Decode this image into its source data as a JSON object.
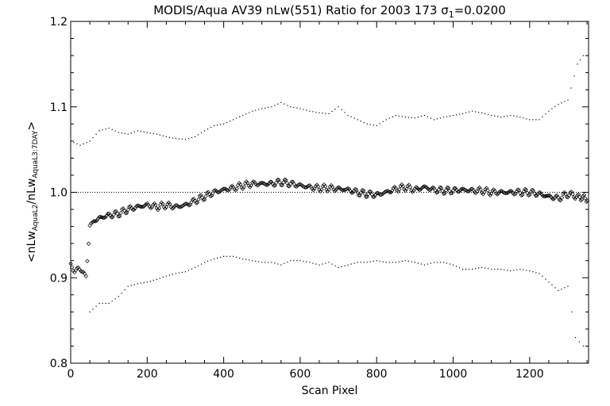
{
  "chart_data": {
    "type": "scatter",
    "title_main": "MODIS/Aqua AV39 nLw(551) Ratio for 2003 173 ",
    "title_sigma": "σ",
    "title_sigma_sub": "1",
    "title_sigma_value": "=0.0200",
    "xlabel": "Scan Pixel",
    "ylabel_parts": [
      "<nLw",
      "AquaL2",
      "/nLw",
      "AquaL3:7DAY",
      ">"
    ],
    "xlim": [
      0,
      1354
    ],
    "ylim": [
      0.8,
      1.2
    ],
    "x_ticks": [
      0,
      200,
      400,
      600,
      800,
      1000,
      1200
    ],
    "x_tick_labels": [
      "0",
      "200",
      "400",
      "600",
      "800",
      "1000",
      "1200"
    ],
    "y_ticks": [
      0.8,
      0.9,
      1.0,
      1.1,
      1.2
    ],
    "y_tick_labels": [
      "0.8",
      "0.9",
      "1.0",
      "1.1",
      "1.2"
    ],
    "reference_line": 1.0,
    "grid": false,
    "series": [
      {
        "style": "diamond-markers",
        "points": [
          [
            0,
            0.915
          ],
          [
            10,
            0.91
          ],
          [
            20,
            0.91
          ],
          [
            30,
            0.905
          ],
          [
            40,
            0.905
          ],
          [
            50,
            0.96
          ],
          [
            60,
            0.965
          ],
          [
            75,
            0.97
          ],
          [
            100,
            0.973
          ],
          [
            125,
            0.975
          ],
          [
            150,
            0.98
          ],
          [
            175,
            0.983
          ],
          [
            200,
            0.985
          ],
          [
            225,
            0.983
          ],
          [
            250,
            0.985
          ],
          [
            275,
            0.983
          ],
          [
            300,
            0.985
          ],
          [
            325,
            0.99
          ],
          [
            350,
            0.995
          ],
          [
            375,
            1.0
          ],
          [
            400,
            1.003
          ],
          [
            425,
            1.005
          ],
          [
            450,
            1.008
          ],
          [
            475,
            1.01
          ],
          [
            500,
            1.01
          ],
          [
            525,
            1.01
          ],
          [
            550,
            1.012
          ],
          [
            575,
            1.01
          ],
          [
            600,
            1.008
          ],
          [
            625,
            1.006
          ],
          [
            650,
            1.005
          ],
          [
            675,
            1.005
          ],
          [
            700,
            1.004
          ],
          [
            725,
            1.003
          ],
          [
            750,
            1.0
          ],
          [
            775,
            0.998
          ],
          [
            800,
            0.997
          ],
          [
            825,
            1.0
          ],
          [
            850,
            1.004
          ],
          [
            875,
            1.006
          ],
          [
            900,
            1.003
          ],
          [
            925,
            1.006
          ],
          [
            950,
            1.003
          ],
          [
            975,
            1.002
          ],
          [
            1000,
            1.002
          ],
          [
            1025,
            1.003
          ],
          [
            1050,
            1.002
          ],
          [
            1075,
            1.002
          ],
          [
            1100,
            1.0
          ],
          [
            1125,
            1.0
          ],
          [
            1150,
            1.0
          ],
          [
            1175,
            1.0
          ],
          [
            1200,
            1.0
          ],
          [
            1225,
            0.998
          ],
          [
            1250,
            0.995
          ],
          [
            1275,
            0.993
          ],
          [
            1300,
            0.998
          ],
          [
            1325,
            0.995
          ],
          [
            1354,
            0.992
          ]
        ]
      },
      {
        "style": "dots-upper",
        "points": [
          [
            0,
            1.06
          ],
          [
            25,
            1.055
          ],
          [
            50,
            1.06
          ],
          [
            75,
            1.072
          ],
          [
            100,
            1.075
          ],
          [
            125,
            1.07
          ],
          [
            150,
            1.068
          ],
          [
            175,
            1.072
          ],
          [
            200,
            1.07
          ],
          [
            225,
            1.068
          ],
          [
            250,
            1.065
          ],
          [
            275,
            1.063
          ],
          [
            300,
            1.062
          ],
          [
            325,
            1.065
          ],
          [
            350,
            1.072
          ],
          [
            375,
            1.078
          ],
          [
            400,
            1.08
          ],
          [
            425,
            1.085
          ],
          [
            450,
            1.09
          ],
          [
            475,
            1.095
          ],
          [
            500,
            1.098
          ],
          [
            525,
            1.1
          ],
          [
            550,
            1.105
          ],
          [
            575,
            1.1
          ],
          [
            600,
            1.098
          ],
          [
            625,
            1.095
          ],
          [
            650,
            1.093
          ],
          [
            675,
            1.092
          ],
          [
            700,
            1.1
          ],
          [
            725,
            1.09
          ],
          [
            750,
            1.085
          ],
          [
            775,
            1.08
          ],
          [
            800,
            1.078
          ],
          [
            825,
            1.085
          ],
          [
            850,
            1.09
          ],
          [
            875,
            1.088
          ],
          [
            900,
            1.087
          ],
          [
            925,
            1.09
          ],
          [
            950,
            1.085
          ],
          [
            975,
            1.088
          ],
          [
            1000,
            1.09
          ],
          [
            1025,
            1.092
          ],
          [
            1050,
            1.095
          ],
          [
            1075,
            1.093
          ],
          [
            1100,
            1.09
          ],
          [
            1125,
            1.088
          ],
          [
            1150,
            1.09
          ],
          [
            1175,
            1.088
          ],
          [
            1200,
            1.085
          ],
          [
            1225,
            1.085
          ],
          [
            1250,
            1.095
          ],
          [
            1275,
            1.103
          ],
          [
            1300,
            1.108
          ],
          [
            1325,
            1.15
          ],
          [
            1340,
            1.16
          ]
        ]
      },
      {
        "style": "dots-lower",
        "points": [
          [
            50,
            0.86
          ],
          [
            75,
            0.87
          ],
          [
            100,
            0.87
          ],
          [
            125,
            0.878
          ],
          [
            150,
            0.89
          ],
          [
            175,
            0.893
          ],
          [
            200,
            0.895
          ],
          [
            225,
            0.898
          ],
          [
            250,
            0.902
          ],
          [
            275,
            0.905
          ],
          [
            300,
            0.907
          ],
          [
            325,
            0.912
          ],
          [
            350,
            0.918
          ],
          [
            375,
            0.922
          ],
          [
            400,
            0.925
          ],
          [
            425,
            0.925
          ],
          [
            450,
            0.922
          ],
          [
            475,
            0.92
          ],
          [
            500,
            0.918
          ],
          [
            525,
            0.918
          ],
          [
            550,
            0.915
          ],
          [
            575,
            0.92
          ],
          [
            600,
            0.92
          ],
          [
            625,
            0.918
          ],
          [
            650,
            0.915
          ],
          [
            675,
            0.918
          ],
          [
            700,
            0.912
          ],
          [
            725,
            0.915
          ],
          [
            750,
            0.918
          ],
          [
            775,
            0.918
          ],
          [
            800,
            0.92
          ],
          [
            825,
            0.918
          ],
          [
            850,
            0.918
          ],
          [
            875,
            0.92
          ],
          [
            900,
            0.918
          ],
          [
            925,
            0.915
          ],
          [
            950,
            0.918
          ],
          [
            975,
            0.918
          ],
          [
            1000,
            0.915
          ],
          [
            1025,
            0.91
          ],
          [
            1050,
            0.91
          ],
          [
            1075,
            0.912
          ],
          [
            1100,
            0.91
          ],
          [
            1125,
            0.91
          ],
          [
            1150,
            0.908
          ],
          [
            1175,
            0.91
          ],
          [
            1200,
            0.908
          ],
          [
            1225,
            0.905
          ],
          [
            1250,
            0.895
          ],
          [
            1275,
            0.885
          ],
          [
            1300,
            0.89
          ],
          [
            1320,
            0.83
          ],
          [
            1340,
            0.82
          ]
        ]
      }
    ]
  }
}
